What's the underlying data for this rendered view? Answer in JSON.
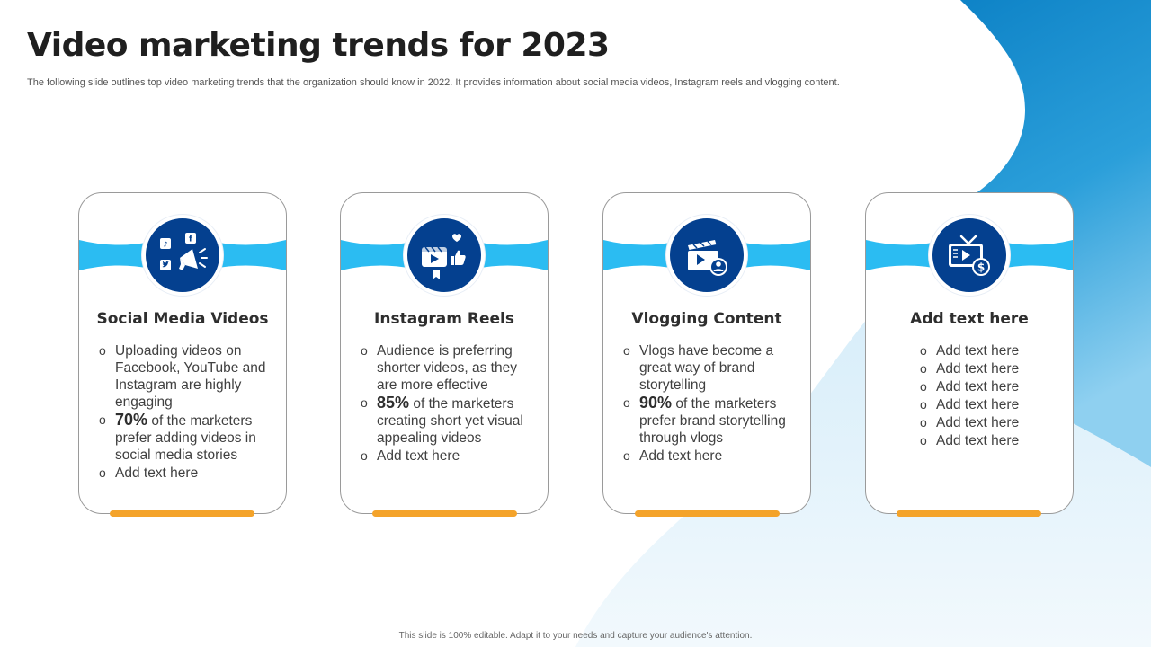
{
  "slide": {
    "title": "Video marketing trends for 2023",
    "subtitle": "The following slide outlines top video marketing trends that the organization should know in 2022. It provides information about social media videos, Instagram reels and vlogging content.",
    "footer": "This slide is 100% editable. Adapt it to your needs and capture your audience's attention."
  },
  "colors": {
    "accent_dark": "#04408f",
    "accent_light": "#2bbcf2",
    "underline": "#f4a32a"
  },
  "cards": [
    {
      "icon": "social-media-megaphone-icon",
      "title": "Social Media Videos",
      "bullets": [
        {
          "text": "Uploading videos on Facebook, YouTube and Instagram are highly engaging"
        },
        {
          "stat": "70%",
          "text": " of the marketers prefer adding videos in social media stories"
        },
        {
          "text": "Add text here"
        }
      ]
    },
    {
      "icon": "instagram-reels-icon",
      "title": "Instagram Reels",
      "bullets": [
        {
          "text": "Audience is preferring shorter videos, as they are more effective"
        },
        {
          "stat": "85%",
          "text": " of the marketers creating short yet visual appealing videos"
        },
        {
          "text": "Add text here"
        }
      ]
    },
    {
      "icon": "vlogging-clapperboard-icon",
      "title": "Vlogging Content",
      "bullets": [
        {
          "text": "Vlogs have become a great way of brand storytelling"
        },
        {
          "stat": "90%",
          "text": " of the marketers prefer brand storytelling through vlogs"
        },
        {
          "text": "Add text here"
        }
      ]
    },
    {
      "icon": "tv-dollar-icon",
      "title": "Add text here",
      "bullets": [
        {
          "text": "Add text here"
        },
        {
          "text": "Add text here"
        },
        {
          "text": "Add text here"
        },
        {
          "text": "Add text here"
        },
        {
          "text": "Add text here"
        },
        {
          "text": "Add text here"
        }
      ]
    }
  ]
}
